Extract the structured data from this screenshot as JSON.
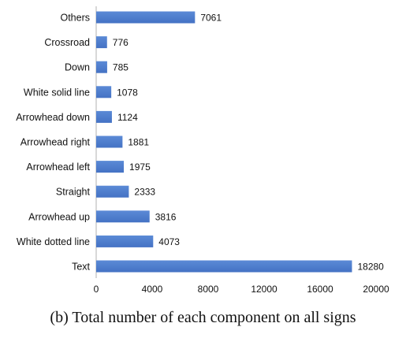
{
  "caption": "(b)  Total number of each component on all signs",
  "chart_data": {
    "type": "bar",
    "orientation": "horizontal",
    "categories": [
      "Others",
      "Crossroad",
      "Down",
      "White solid line",
      "Arrowhead down",
      "Arrowhead right",
      "Arrowhead left",
      "Straight",
      "Arrowhead up",
      "White dotted line",
      "Text"
    ],
    "values": [
      7061,
      776,
      785,
      1078,
      1124,
      1881,
      1975,
      2333,
      3816,
      4073,
      18280
    ],
    "xlim": [
      0,
      20000
    ],
    "xticks": [
      0,
      4000,
      8000,
      12000,
      16000,
      20000
    ],
    "bar_color": "#4472c4",
    "data_labels": true,
    "grid": false,
    "title": "",
    "xlabel": "",
    "ylabel": ""
  }
}
